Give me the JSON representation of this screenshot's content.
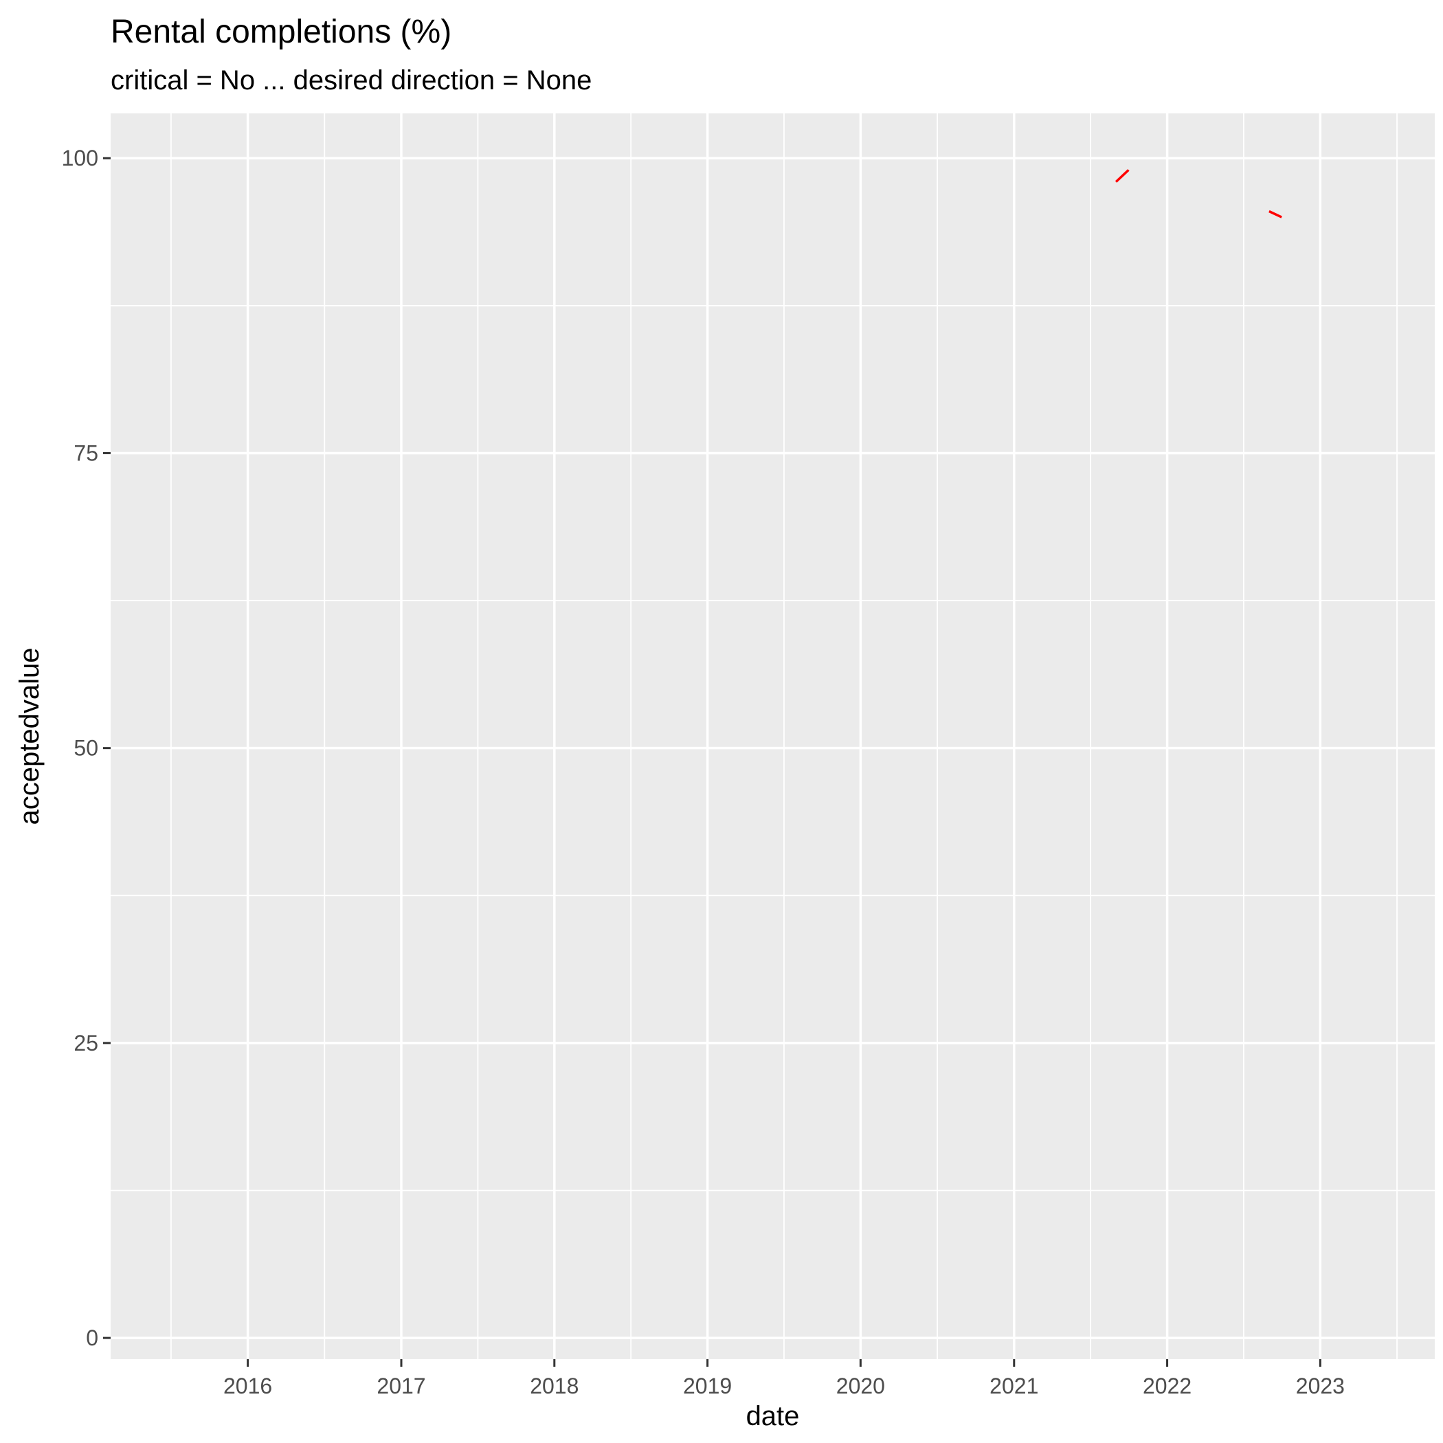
{
  "chart_data": {
    "type": "line",
    "title": "Rental completions (%)",
    "subtitle": "critical = No ... desired direction = None",
    "xlabel": "date",
    "ylabel": "acceptedvalue",
    "x_axis_type": "date",
    "xlim": [
      "2015-02-08",
      "2023-10-01"
    ],
    "ylim": [
      -1.8,
      103.8
    ],
    "x_ticks": [
      "2016",
      "2017",
      "2018",
      "2019",
      "2020",
      "2021",
      "2022",
      "2023"
    ],
    "y_ticks": [
      0,
      25,
      50,
      75,
      100
    ],
    "grid": true,
    "legend": "none",
    "colors": {
      "panel_background": "#ebebeb",
      "grid": "#ffffff",
      "series": "#ff0000"
    },
    "series": [
      {
        "color": "#ff0000",
        "segments": [
          {
            "x": [
              "2021-09-01",
              "2021-10-01"
            ],
            "y": [
              98.0,
              99.0
            ]
          },
          {
            "x": [
              "2022-09-01",
              "2022-10-01"
            ],
            "y": [
              95.5,
              95.0
            ]
          }
        ]
      }
    ]
  }
}
